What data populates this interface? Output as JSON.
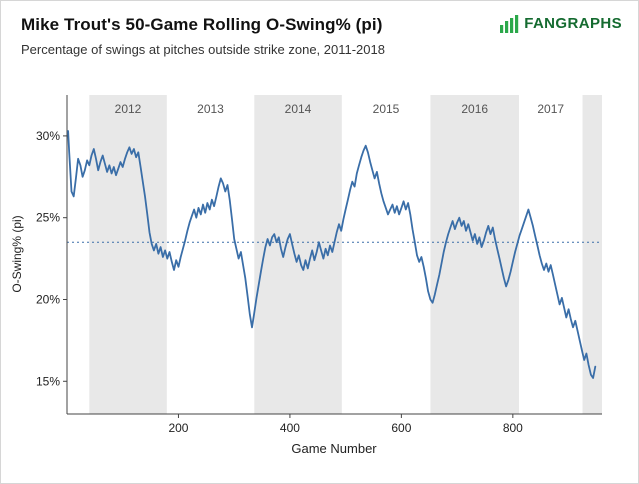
{
  "header": {
    "title": "Mike Trout's 50-Game Rolling O-Swing% (pi)",
    "subtitle": "Percentage of swings at pitches outside strike zone, 2011-2018",
    "logo_text": "FANGRAPHS",
    "logo_text_color": "#156b30",
    "logo_icon_color": "#2ba84a"
  },
  "chart_data": {
    "type": "line",
    "title": "Mike Trout's 50-Game Rolling O-Swing% (pi)",
    "subtitle": "Percentage of swings at pitches outside strike zone, 2011-2018",
    "xlabel": "Game Number",
    "ylabel": "O-Swing% (pi)",
    "xlim": [
      0,
      960
    ],
    "ylim": [
      13,
      32.5
    ],
    "xticks": [
      200,
      400,
      600,
      800
    ],
    "yticks": [
      15,
      20,
      25,
      30
    ],
    "ytick_suffix": "%",
    "grid": false,
    "legend": "none",
    "ref_line": 23.5,
    "line_color": "#3a6ea8",
    "band_color": "#e8e8e8",
    "season_bands": [
      {
        "label": "",
        "start": 0,
        "end": 40,
        "shaded": false
      },
      {
        "label": "2012",
        "start": 40,
        "end": 179,
        "shaded": true
      },
      {
        "label": "2013",
        "start": 179,
        "end": 336,
        "shaded": false
      },
      {
        "label": "2014",
        "start": 336,
        "end": 493,
        "shaded": true
      },
      {
        "label": "2015",
        "start": 493,
        "end": 652,
        "shaded": false
      },
      {
        "label": "2016",
        "start": 652,
        "end": 811,
        "shaded": true
      },
      {
        "label": "2017",
        "start": 811,
        "end": 925,
        "shaded": false
      },
      {
        "label": "",
        "start": 925,
        "end": 960,
        "shaded": true
      }
    ],
    "series": [
      {
        "name": "Mike Trout 50-game rolling O-Swing% (pi)",
        "points": [
          [
            2,
            30.3
          ],
          [
            4,
            29.0
          ],
          [
            8,
            26.6
          ],
          [
            12,
            26.3
          ],
          [
            16,
            27.4
          ],
          [
            20,
            28.6
          ],
          [
            24,
            28.2
          ],
          [
            28,
            27.5
          ],
          [
            32,
            27.9
          ],
          [
            36,
            28.5
          ],
          [
            40,
            28.2
          ],
          [
            44,
            28.8
          ],
          [
            48,
            29.2
          ],
          [
            52,
            28.6
          ],
          [
            56,
            27.9
          ],
          [
            60,
            28.4
          ],
          [
            64,
            28.8
          ],
          [
            68,
            28.3
          ],
          [
            72,
            27.8
          ],
          [
            76,
            28.2
          ],
          [
            80,
            27.7
          ],
          [
            84,
            28.1
          ],
          [
            88,
            27.6
          ],
          [
            92,
            28.0
          ],
          [
            96,
            28.4
          ],
          [
            100,
            28.1
          ],
          [
            104,
            28.6
          ],
          [
            108,
            29.0
          ],
          [
            112,
            29.3
          ],
          [
            116,
            28.9
          ],
          [
            120,
            29.2
          ],
          [
            124,
            28.7
          ],
          [
            128,
            29.0
          ],
          [
            132,
            28.1
          ],
          [
            136,
            27.2
          ],
          [
            140,
            26.3
          ],
          [
            144,
            25.2
          ],
          [
            148,
            24.1
          ],
          [
            152,
            23.4
          ],
          [
            156,
            23.0
          ],
          [
            160,
            23.4
          ],
          [
            164,
            22.8
          ],
          [
            168,
            23.2
          ],
          [
            172,
            22.6
          ],
          [
            176,
            23.0
          ],
          [
            180,
            22.5
          ],
          [
            184,
            22.9
          ],
          [
            188,
            22.3
          ],
          [
            192,
            21.8
          ],
          [
            196,
            22.4
          ],
          [
            200,
            22.0
          ],
          [
            204,
            22.6
          ],
          [
            208,
            23.1
          ],
          [
            212,
            23.6
          ],
          [
            216,
            24.2
          ],
          [
            220,
            24.7
          ],
          [
            224,
            25.1
          ],
          [
            228,
            25.5
          ],
          [
            232,
            25.0
          ],
          [
            236,
            25.6
          ],
          [
            240,
            25.2
          ],
          [
            244,
            25.8
          ],
          [
            248,
            25.3
          ],
          [
            252,
            25.9
          ],
          [
            256,
            25.5
          ],
          [
            260,
            26.1
          ],
          [
            264,
            25.7
          ],
          [
            268,
            26.3
          ],
          [
            272,
            26.9
          ],
          [
            276,
            27.4
          ],
          [
            280,
            27.1
          ],
          [
            284,
            26.6
          ],
          [
            288,
            27.0
          ],
          [
            292,
            26.1
          ],
          [
            296,
            24.9
          ],
          [
            300,
            23.7
          ],
          [
            304,
            23.1
          ],
          [
            308,
            22.5
          ],
          [
            312,
            22.9
          ],
          [
            316,
            22.1
          ],
          [
            320,
            21.3
          ],
          [
            324,
            20.2
          ],
          [
            328,
            19.1
          ],
          [
            332,
            18.3
          ],
          [
            336,
            19.2
          ],
          [
            340,
            20.1
          ],
          [
            344,
            20.9
          ],
          [
            348,
            21.7
          ],
          [
            352,
            22.5
          ],
          [
            356,
            23.2
          ],
          [
            360,
            23.7
          ],
          [
            364,
            23.3
          ],
          [
            368,
            23.8
          ],
          [
            372,
            24.0
          ],
          [
            376,
            23.5
          ],
          [
            380,
            23.8
          ],
          [
            384,
            23.1
          ],
          [
            388,
            22.6
          ],
          [
            392,
            23.2
          ],
          [
            396,
            23.7
          ],
          [
            400,
            24.0
          ],
          [
            404,
            23.4
          ],
          [
            408,
            22.8
          ],
          [
            412,
            22.3
          ],
          [
            416,
            22.7
          ],
          [
            420,
            22.1
          ],
          [
            424,
            21.8
          ],
          [
            428,
            22.4
          ],
          [
            432,
            21.9
          ],
          [
            436,
            22.5
          ],
          [
            440,
            23.0
          ],
          [
            444,
            22.4
          ],
          [
            448,
            22.9
          ],
          [
            452,
            23.5
          ],
          [
            456,
            23.0
          ],
          [
            460,
            22.5
          ],
          [
            464,
            23.1
          ],
          [
            468,
            22.7
          ],
          [
            472,
            23.3
          ],
          [
            476,
            22.9
          ],
          [
            480,
            23.5
          ],
          [
            484,
            24.1
          ],
          [
            488,
            24.6
          ],
          [
            492,
            24.2
          ],
          [
            496,
            24.9
          ],
          [
            500,
            25.5
          ],
          [
            504,
            26.1
          ],
          [
            508,
            26.7
          ],
          [
            512,
            27.2
          ],
          [
            516,
            26.9
          ],
          [
            520,
            27.7
          ],
          [
            524,
            28.2
          ],
          [
            528,
            28.7
          ],
          [
            532,
            29.1
          ],
          [
            536,
            29.4
          ],
          [
            540,
            29.0
          ],
          [
            544,
            28.4
          ],
          [
            548,
            27.9
          ],
          [
            552,
            27.4
          ],
          [
            556,
            27.8
          ],
          [
            560,
            27.1
          ],
          [
            564,
            26.5
          ],
          [
            568,
            26.0
          ],
          [
            572,
            25.6
          ],
          [
            576,
            25.2
          ],
          [
            580,
            25.5
          ],
          [
            584,
            25.8
          ],
          [
            588,
            25.3
          ],
          [
            592,
            25.7
          ],
          [
            596,
            25.2
          ],
          [
            600,
            25.6
          ],
          [
            604,
            26.0
          ],
          [
            608,
            25.5
          ],
          [
            612,
            25.9
          ],
          [
            616,
            25.2
          ],
          [
            620,
            24.3
          ],
          [
            624,
            23.5
          ],
          [
            628,
            22.7
          ],
          [
            632,
            22.3
          ],
          [
            636,
            22.6
          ],
          [
            640,
            22.0
          ],
          [
            644,
            21.3
          ],
          [
            648,
            20.5
          ],
          [
            652,
            20.0
          ],
          [
            656,
            19.8
          ],
          [
            660,
            20.3
          ],
          [
            664,
            20.9
          ],
          [
            668,
            21.5
          ],
          [
            672,
            22.2
          ],
          [
            676,
            22.9
          ],
          [
            680,
            23.5
          ],
          [
            684,
            24.0
          ],
          [
            688,
            24.4
          ],
          [
            692,
            24.8
          ],
          [
            696,
            24.3
          ],
          [
            700,
            24.7
          ],
          [
            704,
            25.0
          ],
          [
            708,
            24.5
          ],
          [
            712,
            24.8
          ],
          [
            716,
            24.2
          ],
          [
            720,
            24.6
          ],
          [
            724,
            24.1
          ],
          [
            728,
            23.6
          ],
          [
            732,
            24.0
          ],
          [
            736,
            23.4
          ],
          [
            740,
            23.8
          ],
          [
            744,
            23.2
          ],
          [
            748,
            23.6
          ],
          [
            752,
            24.1
          ],
          [
            756,
            24.5
          ],
          [
            760,
            24.0
          ],
          [
            764,
            24.4
          ],
          [
            768,
            23.7
          ],
          [
            772,
            23.1
          ],
          [
            776,
            22.5
          ],
          [
            780,
            21.9
          ],
          [
            784,
            21.3
          ],
          [
            788,
            20.8
          ],
          [
            792,
            21.2
          ],
          [
            796,
            21.7
          ],
          [
            800,
            22.3
          ],
          [
            804,
            22.9
          ],
          [
            808,
            23.4
          ],
          [
            812,
            23.9
          ],
          [
            816,
            24.3
          ],
          [
            820,
            24.7
          ],
          [
            824,
            25.1
          ],
          [
            828,
            25.5
          ],
          [
            832,
            25.0
          ],
          [
            836,
            24.5
          ],
          [
            840,
            23.9
          ],
          [
            844,
            23.3
          ],
          [
            848,
            22.7
          ],
          [
            852,
            22.2
          ],
          [
            856,
            21.8
          ],
          [
            860,
            22.2
          ],
          [
            864,
            21.7
          ],
          [
            868,
            22.1
          ],
          [
            872,
            21.5
          ],
          [
            876,
            20.9
          ],
          [
            880,
            20.3
          ],
          [
            884,
            19.7
          ],
          [
            888,
            20.1
          ],
          [
            892,
            19.5
          ],
          [
            896,
            18.9
          ],
          [
            900,
            19.4
          ],
          [
            904,
            18.8
          ],
          [
            908,
            18.3
          ],
          [
            912,
            18.7
          ],
          [
            916,
            18.1
          ],
          [
            920,
            17.5
          ],
          [
            924,
            16.9
          ],
          [
            928,
            16.3
          ],
          [
            932,
            16.7
          ],
          [
            936,
            16.0
          ],
          [
            940,
            15.4
          ],
          [
            944,
            15.2
          ],
          [
            948,
            15.9
          ]
        ]
      }
    ]
  }
}
